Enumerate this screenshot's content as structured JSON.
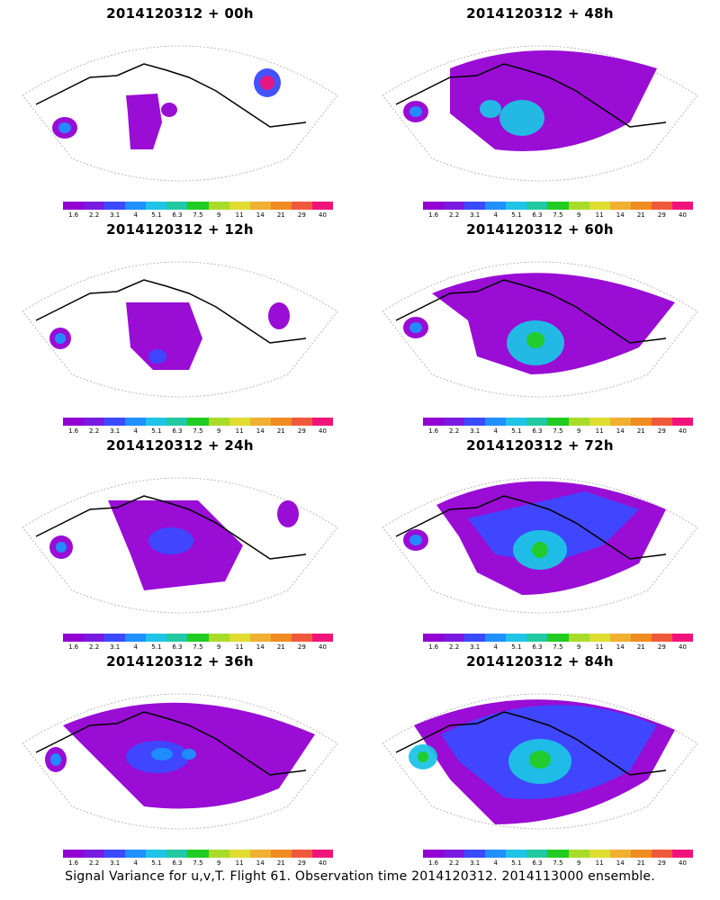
{
  "figure": {
    "caption": "Signal Variance for u,v,T. Flight 61. Observation time 2014120312. 2014113000 ensemble."
  },
  "colorbar": {
    "labels": [
      "1.6",
      "2.2",
      "3.1",
      "4",
      "5.1",
      "6.3",
      "7.5",
      "9",
      "11",
      "14",
      "21",
      "29",
      "40"
    ],
    "colors": [
      "#9400d3",
      "#7a1ae0",
      "#3a4aff",
      "#1e90ff",
      "#1ec3e6",
      "#20c9a0",
      "#22cc22",
      "#a8dc2a",
      "#e0dc30",
      "#f0b030",
      "#f08c20",
      "#f05a3c",
      "#f0147a"
    ]
  },
  "chart_data": [
    {
      "type": "heatmap",
      "title": "2014120312 + 00h",
      "lead_hours": 0,
      "field": "signal variance u,v,T",
      "max_level_reached": "40"
    },
    {
      "type": "heatmap",
      "title": "2014120312 + 48h",
      "lead_hours": 48,
      "field": "signal variance u,v,T",
      "max_level_reached": "6.3"
    },
    {
      "type": "heatmap",
      "title": "2014120312 + 12h",
      "lead_hours": 12,
      "field": "signal variance u,v,T",
      "max_level_reached": "5.1"
    },
    {
      "type": "heatmap",
      "title": "2014120312 + 60h",
      "lead_hours": 60,
      "field": "signal variance u,v,T",
      "max_level_reached": "9"
    },
    {
      "type": "heatmap",
      "title": "2014120312 + 24h",
      "lead_hours": 24,
      "field": "signal variance u,v,T",
      "max_level_reached": "5.1"
    },
    {
      "type": "heatmap",
      "title": "2014120312 + 72h",
      "lead_hours": 72,
      "field": "signal variance u,v,T",
      "max_level_reached": "9"
    },
    {
      "type": "heatmap",
      "title": "2014120312 + 36h",
      "lead_hours": 36,
      "field": "signal variance u,v,T",
      "max_level_reached": "5.1"
    },
    {
      "type": "heatmap",
      "title": "2014120312 + 84h",
      "lead_hours": 84,
      "field": "signal variance u,v,T",
      "max_level_reached": "9"
    }
  ]
}
